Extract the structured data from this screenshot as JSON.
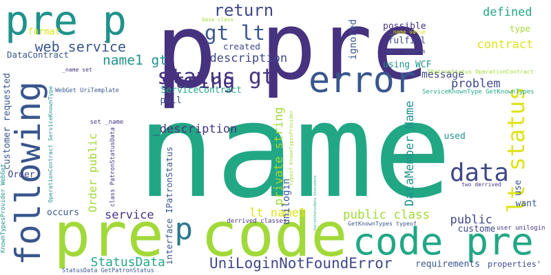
{
  "words": [
    {
      "text": "name",
      "color": "#22a784"
    },
    {
      "text": "pre",
      "color": "#46327e"
    },
    {
      "text": "p",
      "color": "#46327e"
    },
    {
      "text": "pre code",
      "color": "#a2d93a"
    },
    {
      "text": "code pre",
      "color": "#22a784"
    },
    {
      "text": "following",
      "color": "#39568c"
    },
    {
      "text": "error",
      "color": "#39568c"
    },
    {
      "text": "lt status",
      "color": "#dde318"
    },
    {
      "text": "pre p",
      "color": "#20928c"
    },
    {
      "text": "status gt",
      "color": "#46327e"
    },
    {
      "text": "gt lt",
      "color": "#39568c"
    },
    {
      "text": "return",
      "color": "#3f4788"
    },
    {
      "text": "string",
      "color": "#46327e"
    },
    {
      "text": "data",
      "color": "#3f4788"
    },
    {
      "text": "p",
      "color": "#2a788e"
    },
    {
      "text": "web service",
      "color": "#39568c"
    },
    {
      "text": "name1 gt",
      "color": "#20928c"
    },
    {
      "text": "description",
      "color": "#3f4788"
    },
    {
      "text": "message",
      "color": "#3f4788"
    },
    {
      "text": "public class",
      "color": "#a2d93a"
    },
    {
      "text": "UniLoginNotFoundError",
      "color": "#3f4788"
    },
    {
      "text": "StatusData",
      "color": "#22a784"
    },
    {
      "text": "defined",
      "color": "#22a784"
    },
    {
      "text": "contract",
      "color": "#dde318"
    },
    {
      "text": "problem",
      "color": "#3f4788"
    },
    {
      "text": "private string",
      "color": "#a2d93a"
    },
    {
      "text": "DataMember Name",
      "color": "#20928c"
    },
    {
      "text": "lt name1",
      "color": "#dde318"
    },
    {
      "text": "_description",
      "color": "#46327e"
    },
    {
      "text": "service",
      "color": "#46327e"
    },
    {
      "text": "Order public",
      "color": "#a2d93a"
    },
    {
      "text": "public",
      "color": "#3f4788"
    },
    {
      "text": "interface IPatronStatus",
      "color": "#39568c"
    },
    {
      "text": "ServiceContract",
      "color": "#22a784"
    },
    {
      "text": "customer requested",
      "color": "#39568c"
    },
    {
      "text": "unilogin",
      "color": "#39568c"
    },
    {
      "text": "possible",
      "color": "#46327e"
    },
    {
      "text": "fulfill",
      "color": "#3f4788"
    },
    {
      "text": "type",
      "color": "#a2d93a"
    },
    {
      "text": "format",
      "color": "#dde318"
    },
    {
      "text": "DataContract",
      "color": "#39568c"
    },
    {
      "text": "created",
      "color": "#3f4788"
    },
    {
      "text": "ignored",
      "color": "#39568c"
    },
    {
      "text": "using WCF",
      "color": "#20928c"
    },
    {
      "text": "pull",
      "color": "#3f4788"
    },
    {
      "text": "used",
      "color": "#20928c"
    },
    {
      "text": "want",
      "color": "#39568c"
    },
    {
      "text": "use",
      "color": "#39568c"
    },
    {
      "text": "occurs",
      "color": "#39568c"
    },
    {
      "text": "requirements",
      "color": "#39568c"
    },
    {
      "text": "properties'",
      "color": "#3f4788"
    },
    {
      "text": "custome",
      "color": "#3f4788"
    },
    {
      "text": "Order",
      "color": "#3f4788"
    },
    {
      "text": "base class",
      "color": "#a2d93a"
    },
    {
      "text": "_name value",
      "color": "#dde318"
    },
    {
      "text": "data members",
      "color": "#3f4788"
    },
    {
      "text": "IPatronStatus OperationContract",
      "color": "#a2d93a"
    },
    {
      "text": "ServiceKnownType GetKnownTypes",
      "color": "#22a784"
    },
    {
      "text": "_name set",
      "color": "#46327e"
    },
    {
      "text": "WebGet UriTemplate",
      "color": "#39568c"
    },
    {
      "text": "set _name",
      "color": "#46327e"
    },
    {
      "text": "two derrived",
      "color": "#46327e"
    },
    {
      "text": "derrived classes",
      "color": "#46327e"
    },
    {
      "text": "GetKnownTypes typeof",
      "color": "#39568c"
    },
    {
      "text": "user unilogin",
      "color": "#46327e"
    },
    {
      "text": "StatusData GetPatronStatus",
      "color": "#39568c"
    },
    {
      "text": "KnownTypesProvider WebGet",
      "color": "#20928c"
    },
    {
      "text": "OperationContract ServiceKnownType",
      "color": "#20928c"
    },
    {
      "text": "class PatronStatusData",
      "color": "#46327e"
    },
    {
      "text": "typeof KnownTypesProvider",
      "color": "#a2d93a"
    },
    {
      "text": "PatronStatusData StatusData",
      "color": "#22a784"
    }
  ]
}
